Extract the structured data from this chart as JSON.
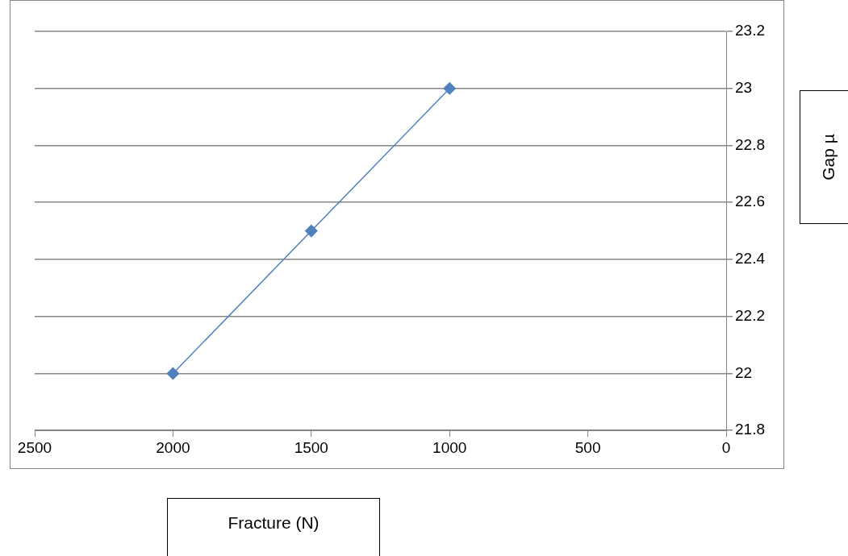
{
  "chart_data": {
    "type": "line",
    "xlabel": "Fracture (N)",
    "ylabel": "Gap µ",
    "x": [
      2000,
      1500,
      1000
    ],
    "series": [
      {
        "color": "#4f81bd",
        "values": [
          22,
          22.5,
          23
        ]
      }
    ],
    "xlim": [
      2500,
      0
    ],
    "xticks": [
      2500,
      2000,
      1500,
      1000,
      500,
      0
    ],
    "ylim": [
      21.8,
      23.2
    ],
    "yticks": [
      21.8,
      22,
      22.2,
      22.4,
      22.6,
      22.8,
      23,
      23.2
    ],
    "grid": "y",
    "legend": false,
    "marker": "diamond",
    "line_style": "solid"
  }
}
